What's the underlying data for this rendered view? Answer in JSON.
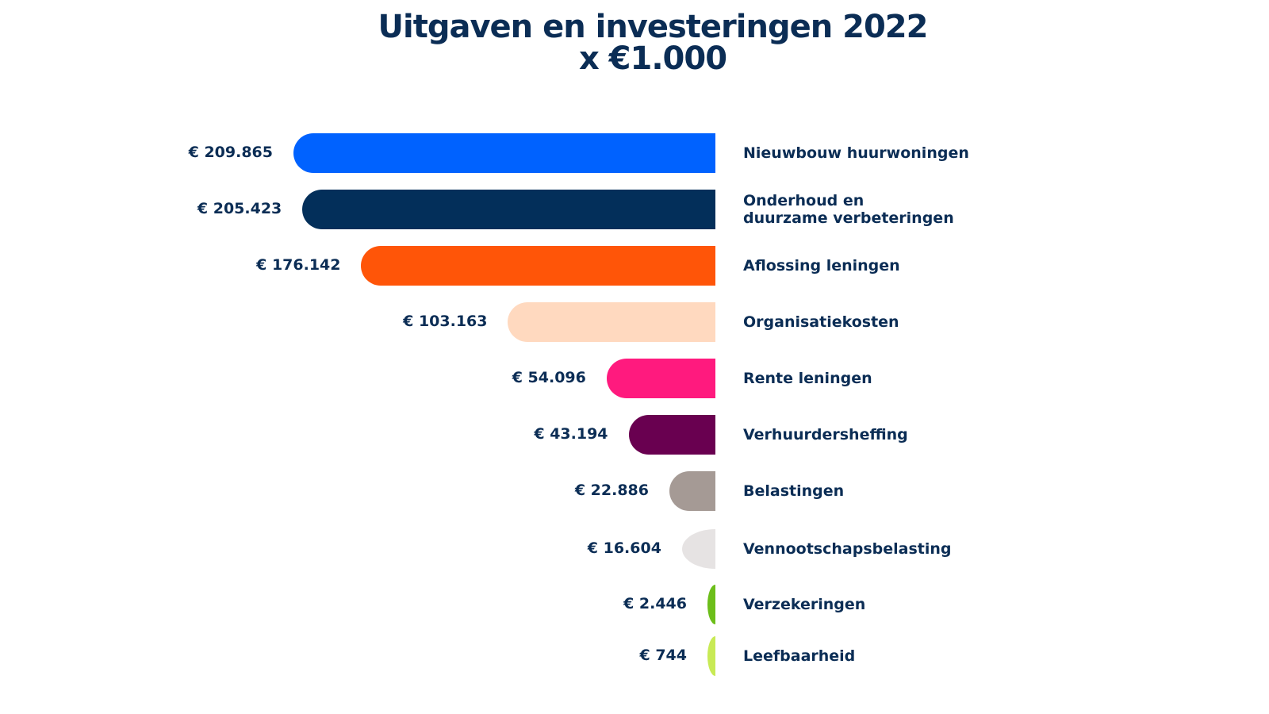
{
  "chart_data": {
    "type": "bar",
    "orientation": "horizontal",
    "title": "Uitgaven en investeringen 2022",
    "subtitle": "x €1.000",
    "xlabel": "",
    "ylabel": "",
    "grid": false,
    "categories": [
      "Nieuwbouw huurwoningen",
      "Onderhoud en\nduurzame verbeteringen",
      "Aflossing leningen",
      "Organisatiekosten",
      "Rente leningen",
      "Verhuurdersheffing",
      "Belastingen",
      "Vennootschapsbelasting",
      "Verzekeringen",
      "Leefbaarheid"
    ],
    "values": [
      209865,
      205423,
      176142,
      103163,
      54096,
      43194,
      22886,
      16604,
      2446,
      744
    ],
    "value_labels": [
      "€  209.865",
      "€ 205.423",
      "€ 176.142",
      "€ 103.163",
      "€ 54.096",
      "€ 43.194",
      "€ 22.886",
      "€ 16.604",
      "€ 2.446",
      "€ 744"
    ],
    "colors": [
      "#0062ff",
      "#032f5a",
      "#ff5508",
      "#ffd9bf",
      "#ff1a7e",
      "#690050",
      "#a59a95",
      "#e6e3e3",
      "#6cbe1a",
      "#c8ea55"
    ],
    "xlim": [
      0,
      209865
    ]
  }
}
